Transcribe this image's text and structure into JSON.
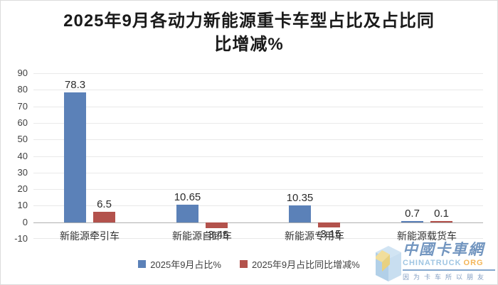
{
  "header": {
    "title_lines": [
      "2025年9月各动力新能源重卡车型占比及占比同",
      "比增减%"
    ]
  },
  "chart_data": {
    "type": "bar",
    "title": "2025年9月各动力新能源重卡车型占比及占比同比增减%",
    "categories": [
      "新能源牵引车",
      "新能源自卸车",
      "新能源专用车",
      "新能源载货车"
    ],
    "series": [
      {
        "name": "2025年9月占比%",
        "color": "#5B81B8",
        "values": [
          78.3,
          10.65,
          10.35,
          0.7
        ]
      },
      {
        "name": "2025年9月占比同比增减%",
        "color": "#B3524C",
        "values": [
          6.5,
          -3.45,
          -3.15,
          0.1
        ]
      }
    ],
    "xlabel": "",
    "ylabel": "",
    "ylim": [
      -10,
      90
    ],
    "yticks": [
      -10,
      0,
      10,
      20,
      30,
      40,
      50,
      60,
      70,
      80,
      90
    ],
    "grid": true,
    "legend_position": "bottom"
  },
  "watermark": {
    "logo_cn": "中國卡車網",
    "logo_en": "CHINATRUCK",
    "logo_tld": "ORG",
    "slogan": "因为卡车所以朋友"
  },
  "colors": {
    "background": "#FFFFFF",
    "border": "#DCDCDC",
    "gridline": "#E9E9E9",
    "zero_line": "#B0B0B0",
    "axis_text": "#404040",
    "label_text": "#2B2B2B",
    "series1": "#5B81B8",
    "series2": "#B3524C"
  }
}
